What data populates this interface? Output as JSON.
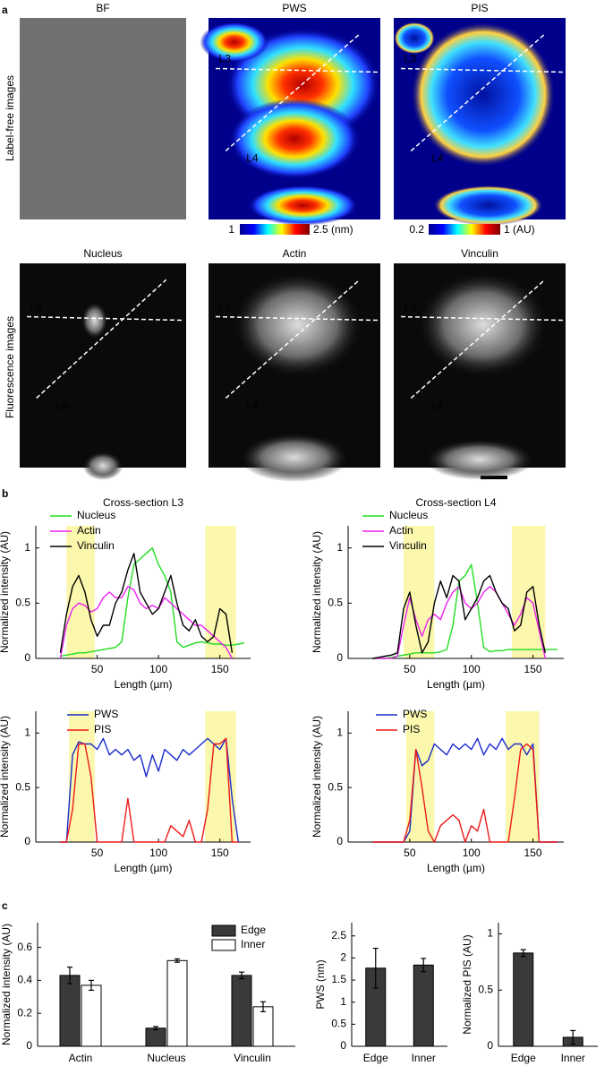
{
  "panel_labels": [
    "a",
    "b",
    "c"
  ],
  "images": {
    "row_labels": [
      "Label-free images",
      "Fluorescence images"
    ],
    "panels": [
      {
        "title": "BF"
      },
      {
        "title": "PWS",
        "lines": [
          "L3",
          "L4"
        ]
      },
      {
        "title": "PIS",
        "lines": [
          "L3",
          "L4"
        ]
      },
      {
        "title": "Nucleus",
        "lines": [
          "L3",
          "L4"
        ]
      },
      {
        "title": "Actin",
        "lines": [
          "L3",
          "L4"
        ]
      },
      {
        "title": "Vinculin",
        "lines": [
          "L3",
          "L4"
        ]
      }
    ],
    "colorbars": [
      {
        "min_label": "1",
        "max_label": "2.5 (nm)"
      },
      {
        "min_label": "0.2",
        "max_label": "1 (AU)"
      }
    ]
  },
  "chart_data": [
    {
      "type": "line",
      "title": "Cross-section L3",
      "xlabel": "Length (µm)",
      "ylabel": "Normalized intensity (AU)",
      "x": [
        20,
        25,
        30,
        35,
        40,
        45,
        50,
        55,
        60,
        65,
        70,
        75,
        80,
        85,
        90,
        95,
        100,
        105,
        110,
        115,
        120,
        125,
        130,
        135,
        140,
        145,
        150,
        155,
        160,
        165,
        170
      ],
      "xlim": [
        0,
        175
      ],
      "xticks": [
        50,
        100,
        150
      ],
      "ylim": [
        0,
        1.2
      ],
      "yticks": [
        0,
        0.5,
        1
      ],
      "highlights": [
        [
          25,
          48
        ],
        [
          138,
          163
        ]
      ],
      "highlight_color": "#fbf7ac",
      "series": [
        {
          "name": "Nucleus",
          "color": "#22dd22",
          "values": [
            0.02,
            0.03,
            0.04,
            0.05,
            0.05,
            0.06,
            0.07,
            0.08,
            0.09,
            0.1,
            0.15,
            0.55,
            0.85,
            0.9,
            0.95,
            1.0,
            0.85,
            0.75,
            0.6,
            0.15,
            0.1,
            0.12,
            0.14,
            0.15,
            0.14,
            0.13,
            0.13,
            0.12,
            0.12,
            0.13,
            0.14
          ]
        },
        {
          "name": "Actin",
          "color": "#ee22ee",
          "values": [
            0,
            0.3,
            0.45,
            0.5,
            0.48,
            0.42,
            0.45,
            0.55,
            0.6,
            0.55,
            0.55,
            0.65,
            0.62,
            0.5,
            0.45,
            0.48,
            0.45,
            0.55,
            0.5,
            0.45,
            0.4,
            0.35,
            0.3,
            0.3,
            0.25,
            0.2,
            0.15,
            0.1,
            0,
            null,
            null
          ]
        },
        {
          "name": "Vinculin",
          "color": "#000000",
          "values": [
            0.05,
            0.4,
            0.65,
            0.75,
            0.6,
            0.35,
            0.2,
            0.3,
            0.3,
            0.5,
            0.6,
            0.8,
            0.95,
            0.6,
            0.5,
            0.4,
            0.45,
            0.6,
            0.75,
            0.5,
            0.3,
            0.25,
            0.35,
            0.2,
            0.15,
            0.2,
            0.45,
            0.4,
            0.05,
            null,
            null
          ]
        }
      ]
    },
    {
      "type": "line",
      "title": "Cross-section L4",
      "xlabel": "Length (µm)",
      "ylabel": "Normalized intensity (AU)",
      "x": [
        20,
        25,
        30,
        35,
        40,
        45,
        50,
        55,
        60,
        65,
        70,
        75,
        80,
        85,
        90,
        95,
        100,
        105,
        110,
        115,
        120,
        125,
        130,
        135,
        140,
        145,
        150,
        155,
        160,
        165,
        170
      ],
      "xlim": [
        0,
        175
      ],
      "xticks": [
        50,
        100,
        150
      ],
      "ylim": [
        0,
        1.2
      ],
      "yticks": [
        0,
        0.5,
        1
      ],
      "highlights": [
        [
          45,
          70
        ],
        [
          133,
          160
        ]
      ],
      "highlight_color": "#fbf7ac",
      "series": [
        {
          "name": "Nucleus",
          "color": "#22dd22",
          "values": [
            0,
            0,
            0,
            0.01,
            0.02,
            0.03,
            0.04,
            0.05,
            0.05,
            0.05,
            0.05,
            0.06,
            0.08,
            0.3,
            0.7,
            0.75,
            0.85,
            0.5,
            0.1,
            0.06,
            0.07,
            0.07,
            0.08,
            0.08,
            0.08,
            0.08,
            0.08,
            0.08,
            0.08,
            0.08,
            0.08
          ]
        },
        {
          "name": "Actin",
          "color": "#ee22ee",
          "values": [
            0,
            0,
            0,
            0,
            0.02,
            0.3,
            0.55,
            0.35,
            0.2,
            0.35,
            0.4,
            0.35,
            0.5,
            0.6,
            0.65,
            0.5,
            0.45,
            0.5,
            0.6,
            0.65,
            0.6,
            0.5,
            0.4,
            0.3,
            0.4,
            0.55,
            0.5,
            0.25,
            0,
            null,
            null
          ]
        },
        {
          "name": "Vinculin",
          "color": "#000000",
          "values": [
            0,
            0.01,
            0.02,
            0.03,
            0.05,
            0.45,
            0.6,
            0.3,
            0.05,
            0.15,
            0.5,
            0.7,
            0.55,
            0.75,
            0.7,
            0.35,
            0.45,
            0.55,
            0.7,
            0.75,
            0.6,
            0.5,
            0.45,
            0.25,
            0.3,
            0.6,
            0.65,
            0.3,
            0.05,
            null,
            null
          ]
        }
      ]
    },
    {
      "type": "line",
      "xlabel": "Length (µm)",
      "ylabel": "Normalized intensity (AU)",
      "x": [
        20,
        25,
        30,
        35,
        40,
        45,
        50,
        55,
        60,
        65,
        70,
        75,
        80,
        85,
        90,
        95,
        100,
        105,
        110,
        115,
        120,
        125,
        130,
        135,
        140,
        145,
        150,
        155,
        160,
        165,
        170
      ],
      "xlim": [
        0,
        175
      ],
      "xticks": [
        50,
        100,
        150
      ],
      "ylim": [
        0,
        1.2
      ],
      "yticks": [
        0,
        0.5,
        1
      ],
      "highlights": [
        [
          27,
          48
        ],
        [
          138,
          163
        ]
      ],
      "highlight_color": "#fbf7ac",
      "series": [
        {
          "name": "PWS",
          "color": "#1a2bcc",
          "values": [
            0,
            0,
            0.8,
            0.92,
            0.9,
            0.9,
            0.85,
            0.95,
            0.8,
            0.85,
            0.8,
            0.85,
            0.75,
            0.8,
            0.6,
            0.8,
            0.65,
            0.85,
            0.8,
            0.75,
            0.85,
            0.8,
            0.85,
            0.9,
            0.95,
            0.9,
            0.85,
            0.95,
            0.4,
            0,
            null
          ]
        },
        {
          "name": "PIS",
          "color": "#ee1a1a",
          "values": [
            0,
            0,
            0.3,
            0.9,
            0.9,
            0.6,
            0,
            0,
            0,
            0,
            0,
            0.4,
            0,
            0,
            0,
            0,
            0,
            0,
            0.15,
            0.1,
            0.05,
            0.2,
            0,
            0,
            0.3,
            0.9,
            0.9,
            0.95,
            0,
            0,
            null
          ]
        }
      ]
    },
    {
      "type": "line",
      "xlabel": "Length (µm)",
      "ylabel": "Normalized intensity (AU)",
      "x": [
        20,
        25,
        30,
        35,
        40,
        45,
        50,
        55,
        60,
        65,
        70,
        75,
        80,
        85,
        90,
        95,
        100,
        105,
        110,
        115,
        120,
        125,
        130,
        135,
        140,
        145,
        150,
        155,
        160,
        165,
        170
      ],
      "xlim": [
        0,
        175
      ],
      "xticks": [
        50,
        100,
        150
      ],
      "ylim": [
        0,
        1.2
      ],
      "yticks": [
        0,
        0.5,
        1
      ],
      "highlights": [
        [
          47,
          70
        ],
        [
          128,
          155
        ]
      ],
      "highlight_color": "#fbf7ac",
      "series": [
        {
          "name": "PWS",
          "color": "#1a2bcc",
          "values": [
            0,
            0,
            0,
            0,
            0,
            0,
            0.1,
            0.85,
            0.7,
            0.75,
            0.9,
            0.85,
            0.8,
            0.9,
            0.85,
            0.9,
            0.85,
            0.95,
            0.8,
            0.9,
            0.85,
            0.95,
            0.85,
            0.9,
            0.9,
            0.8,
            0.9,
            0,
            0,
            0,
            0
          ]
        },
        {
          "name": "PIS",
          "color": "#ee1a1a",
          "values": [
            0,
            0,
            0,
            0,
            0,
            0,
            0.2,
            0.85,
            0.5,
            0.1,
            0,
            0.15,
            0.2,
            0.25,
            0.2,
            0,
            0.15,
            0.1,
            0.3,
            0,
            0,
            0,
            0,
            0.4,
            0.85,
            0.9,
            0.85,
            0,
            0,
            0,
            0
          ]
        }
      ]
    },
    {
      "type": "bar",
      "ylabel": "Normalized intensity (AU)",
      "categories": [
        "Actin",
        "Nucleus",
        "Vinculin"
      ],
      "ylim": [
        0,
        0.75
      ],
      "yticks": [
        0,
        0.2,
        0.4,
        0.6
      ],
      "series": [
        {
          "name": "Edge",
          "color": "#3a3a3a",
          "values": [
            0.43,
            0.11,
            0.43
          ],
          "errors": [
            0.05,
            0.01,
            0.02
          ]
        },
        {
          "name": "Inner",
          "color": "#ffffff",
          "values": [
            0.37,
            0.52,
            0.24
          ],
          "errors": [
            0.03,
            0.01,
            0.03
          ]
        }
      ]
    },
    {
      "type": "bar",
      "ylabel": "PWS (nm)",
      "categories": [
        "Edge",
        "Inner"
      ],
      "ylim": [
        0,
        2.8
      ],
      "yticks": [
        0,
        0.5,
        1,
        1.5,
        2,
        2.5
      ],
      "color": "#3a3a3a",
      "values": [
        1.77,
        1.84
      ],
      "errors": [
        0.45,
        0.15
      ]
    },
    {
      "type": "bar",
      "ylabel": "Normalized PIS (AU)",
      "categories": [
        "Edge",
        "Inner"
      ],
      "ylim": [
        0,
        1.1
      ],
      "yticks": [
        0,
        0.5,
        1
      ],
      "color": "#3a3a3a",
      "values": [
        0.83,
        0.08
      ],
      "errors": [
        0.03,
        0.06
      ]
    }
  ]
}
